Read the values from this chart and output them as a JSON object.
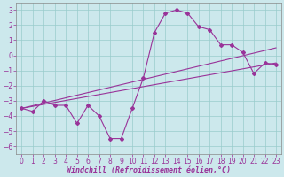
{
  "xlabel": "Windchill (Refroidissement éolien,°C)",
  "xlim": [
    -0.5,
    23.5
  ],
  "ylim": [
    -6.5,
    3.5
  ],
  "xticks": [
    0,
    1,
    2,
    3,
    4,
    5,
    6,
    7,
    8,
    9,
    10,
    11,
    12,
    13,
    14,
    15,
    16,
    17,
    18,
    19,
    20,
    21,
    22,
    23
  ],
  "yticks": [
    -6,
    -5,
    -4,
    -3,
    -2,
    -1,
    0,
    1,
    2,
    3
  ],
  "bg_color": "#cce8ec",
  "line_color": "#993399",
  "grid_color": "#99cccc",
  "line1_x": [
    0,
    1,
    2,
    3,
    4,
    5,
    6,
    7,
    8,
    9,
    10,
    11,
    12,
    13,
    14,
    15,
    16,
    17,
    18,
    19,
    20,
    21,
    22,
    23
  ],
  "line1_y": [
    -3.5,
    -3.7,
    -3.0,
    -3.3,
    -3.3,
    -4.5,
    -3.3,
    -4.0,
    -5.5,
    -5.5,
    -3.5,
    -1.5,
    1.5,
    2.8,
    3.0,
    2.8,
    1.9,
    1.7,
    0.7,
    0.7,
    0.2,
    -1.2,
    -0.5,
    -0.6
  ],
  "line2_x": [
    0,
    23
  ],
  "line2_y": [
    -3.5,
    -0.5
  ],
  "line3_x": [
    0,
    23
  ],
  "line3_y": [
    -3.5,
    0.5
  ],
  "marker": "D",
  "markersize": 2.0,
  "linewidth": 0.8,
  "tick_fontsize": 5.5,
  "xlabel_fontsize": 6.0
}
